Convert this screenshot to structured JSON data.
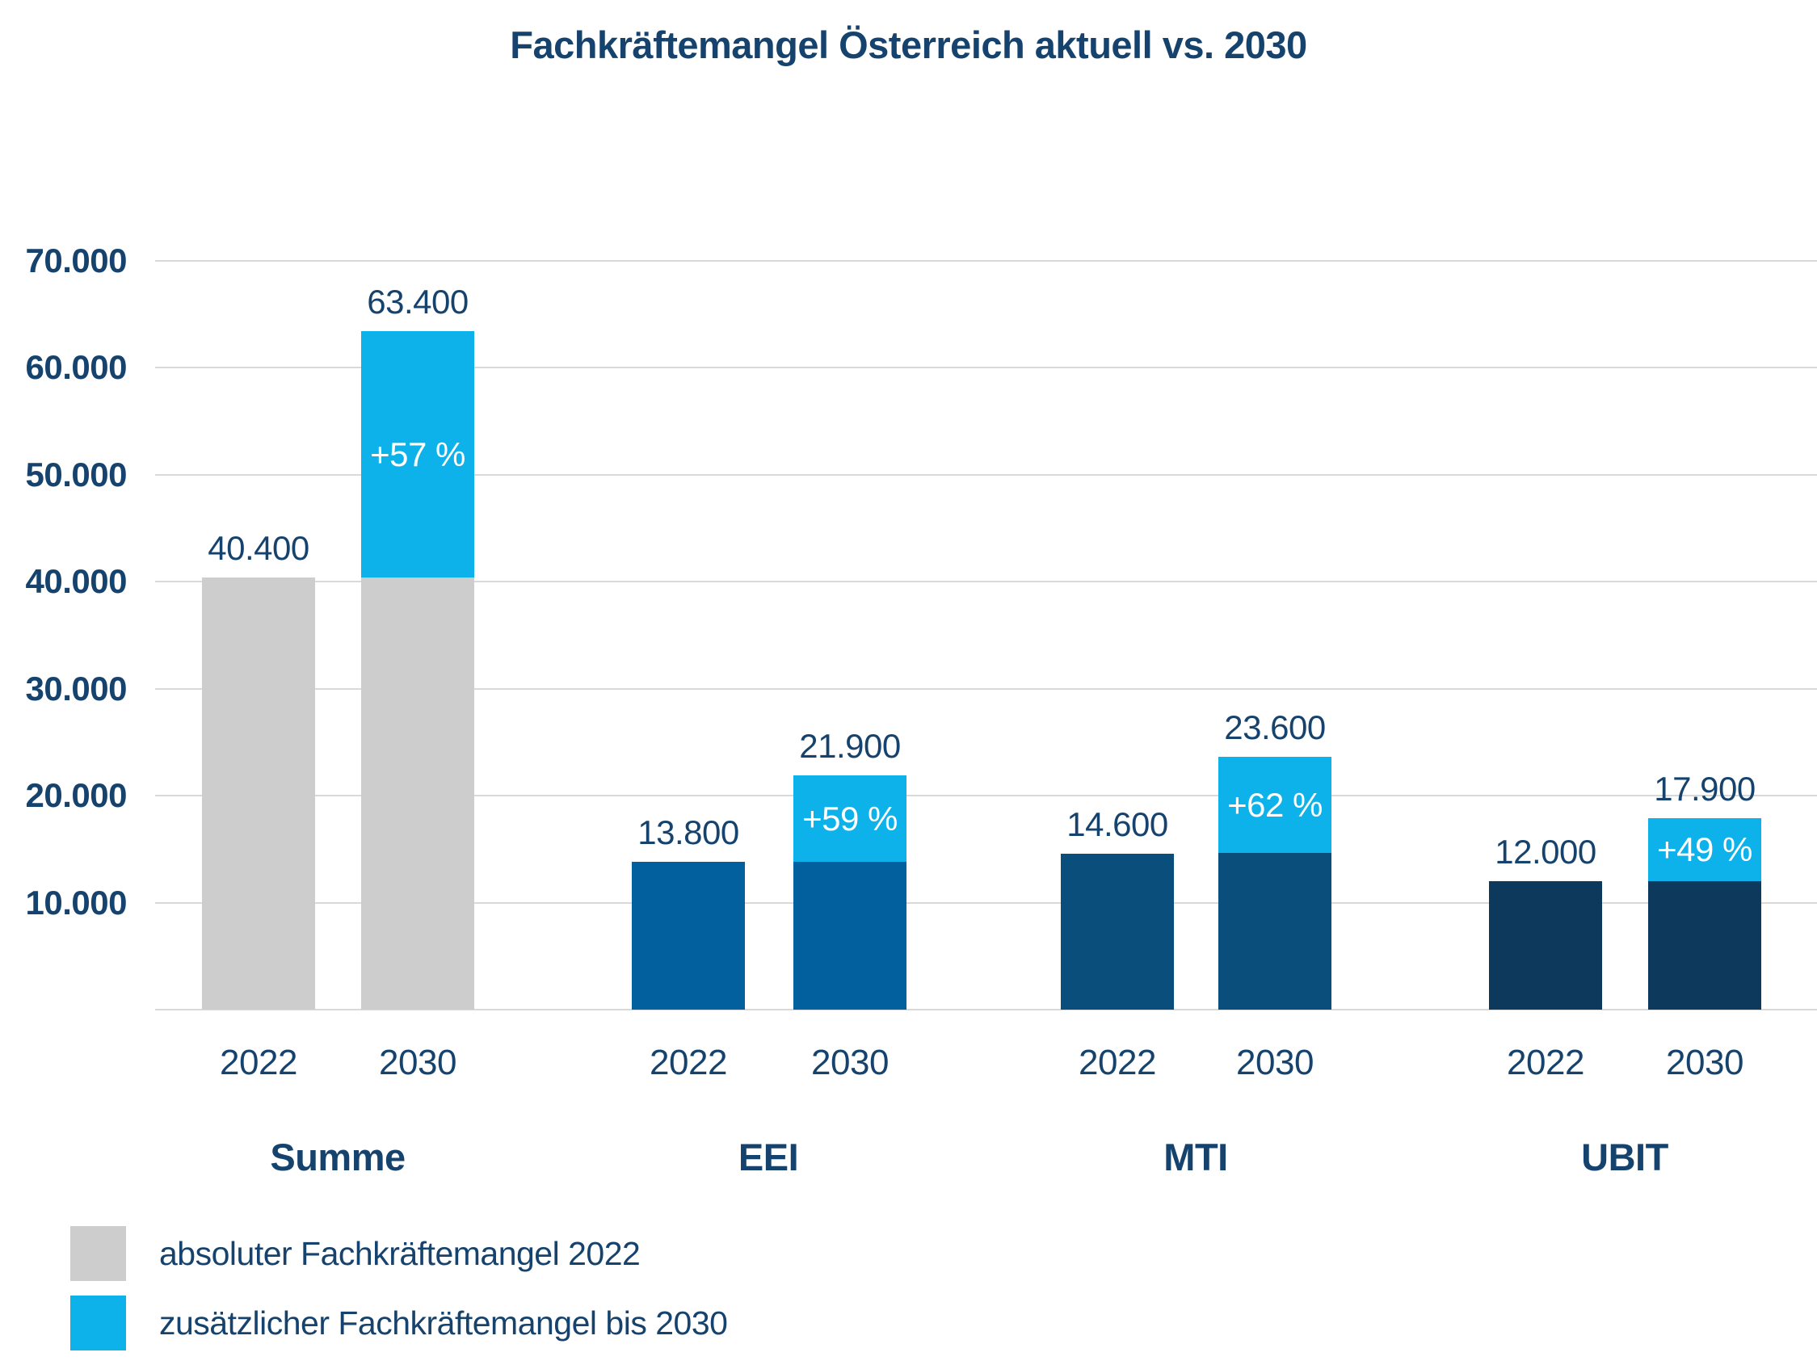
{
  "title": "Fachkräftemangel Österreich aktuell vs. 2030",
  "colors": {
    "text_navy": "#16436e",
    "gridline": "#d9d9d9",
    "gray_2022": "#cdcdcd",
    "cyan_additional": "#0db2ea",
    "blue_eei": "#03609e",
    "blue_mti": "#0a4e7c",
    "blue_ubit": "#0d3a5c"
  },
  "chart_data": {
    "type": "bar",
    "stacked": true,
    "title": "Fachkräftemangel Österreich aktuell vs. 2030",
    "xlabel": "",
    "ylabel": "",
    "ylim": [
      0,
      70000
    ],
    "grid": "horizontal",
    "legend_position": "bottom-left",
    "y_ticks": [
      "70.000",
      "60.000",
      "50.000",
      "40.000",
      "30.000",
      "20.000",
      "10.000"
    ],
    "y_tick_values": [
      70000,
      60000,
      50000,
      40000,
      30000,
      20000,
      10000
    ],
    "extra_color": "#0db2ea",
    "groups": [
      {
        "name": "Summe",
        "color": "#cdcdcd",
        "bars": [
          {
            "year": "2022",
            "value": 40400,
            "label": "40.400"
          },
          {
            "year": "2030",
            "value": 63400,
            "label": "63.400",
            "base": 40400,
            "pct_label": "+57 %"
          }
        ]
      },
      {
        "name": "EEI",
        "color": "#03609e",
        "bars": [
          {
            "year": "2022",
            "value": 13800,
            "label": "13.800"
          },
          {
            "year": "2030",
            "value": 21900,
            "label": "21.900",
            "base": 13800,
            "pct_label": "+59 %"
          }
        ]
      },
      {
        "name": "MTI",
        "color": "#0a4e7c",
        "bars": [
          {
            "year": "2022",
            "value": 14600,
            "label": "14.600"
          },
          {
            "year": "2030",
            "value": 23600,
            "label": "23.600",
            "base": 14600,
            "pct_label": "+62 %"
          }
        ]
      },
      {
        "name": "UBIT",
        "color": "#0d3a5c",
        "bars": [
          {
            "year": "2022",
            "value": 12000,
            "label": "12.000"
          },
          {
            "year": "2030",
            "value": 17900,
            "label": "17.900",
            "base": 12000,
            "pct_label": "+49 %"
          }
        ]
      }
    ],
    "legend": [
      {
        "swatch_color": "#cdcdcd",
        "label": "absoluter Fachkräftemangel 2022"
      },
      {
        "swatch_color": "#0db2ea",
        "label": "zusätzlicher Fachkräftemangel bis 2030"
      }
    ]
  }
}
